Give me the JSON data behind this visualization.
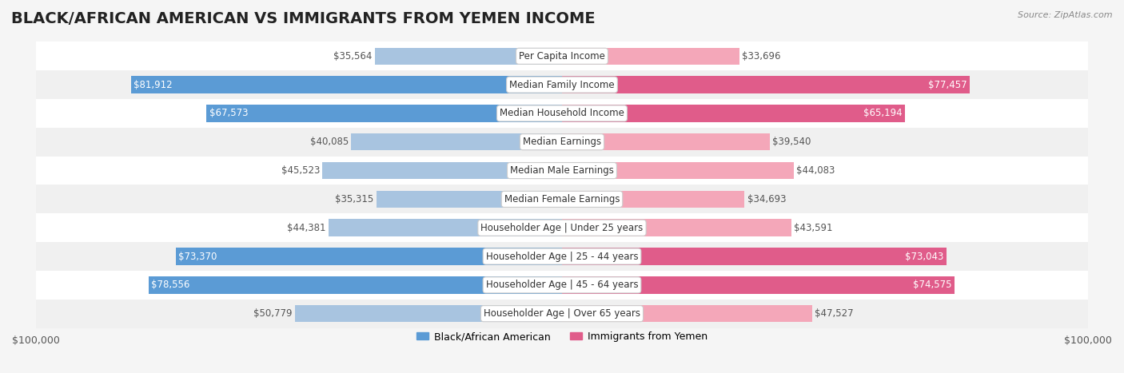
{
  "title": "BLACK/AFRICAN AMERICAN VS IMMIGRANTS FROM YEMEN INCOME",
  "source": "Source: ZipAtlas.com",
  "categories": [
    "Per Capita Income",
    "Median Family Income",
    "Median Household Income",
    "Median Earnings",
    "Median Male Earnings",
    "Median Female Earnings",
    "Householder Age | Under 25 years",
    "Householder Age | 25 - 44 years",
    "Householder Age | 45 - 64 years",
    "Householder Age | Over 65 years"
  ],
  "left_values": [
    35564,
    81912,
    67573,
    40085,
    45523,
    35315,
    44381,
    73370,
    78556,
    50779
  ],
  "right_values": [
    33696,
    77457,
    65194,
    39540,
    44083,
    34693,
    43591,
    73043,
    74575,
    47527
  ],
  "left_labels": [
    "$35,564",
    "$81,912",
    "$67,573",
    "$40,085",
    "$45,523",
    "$35,315",
    "$44,381",
    "$73,370",
    "$78,556",
    "$50,779"
  ],
  "right_labels": [
    "$33,696",
    "$77,457",
    "$65,194",
    "$39,540",
    "$44,083",
    "$34,693",
    "$43,591",
    "$73,043",
    "$74,575",
    "$47,527"
  ],
  "left_color": "#a8c4e0",
  "left_color_strong": "#6fa8d4",
  "right_color": "#f4a7b9",
  "right_color_strong": "#e87da0",
  "strong_threshold": 60000,
  "max_val": 100000,
  "legend_left": "Black/African American",
  "legend_right": "Immigrants from Yemen",
  "xlabel_left": "$100,000",
  "xlabel_right": "$100,000",
  "background_color": "#f5f5f5",
  "row_bg_color": "#ffffff",
  "row_alt_color": "#f0f0f0",
  "title_fontsize": 14,
  "label_fontsize": 8.5,
  "category_fontsize": 8.5
}
